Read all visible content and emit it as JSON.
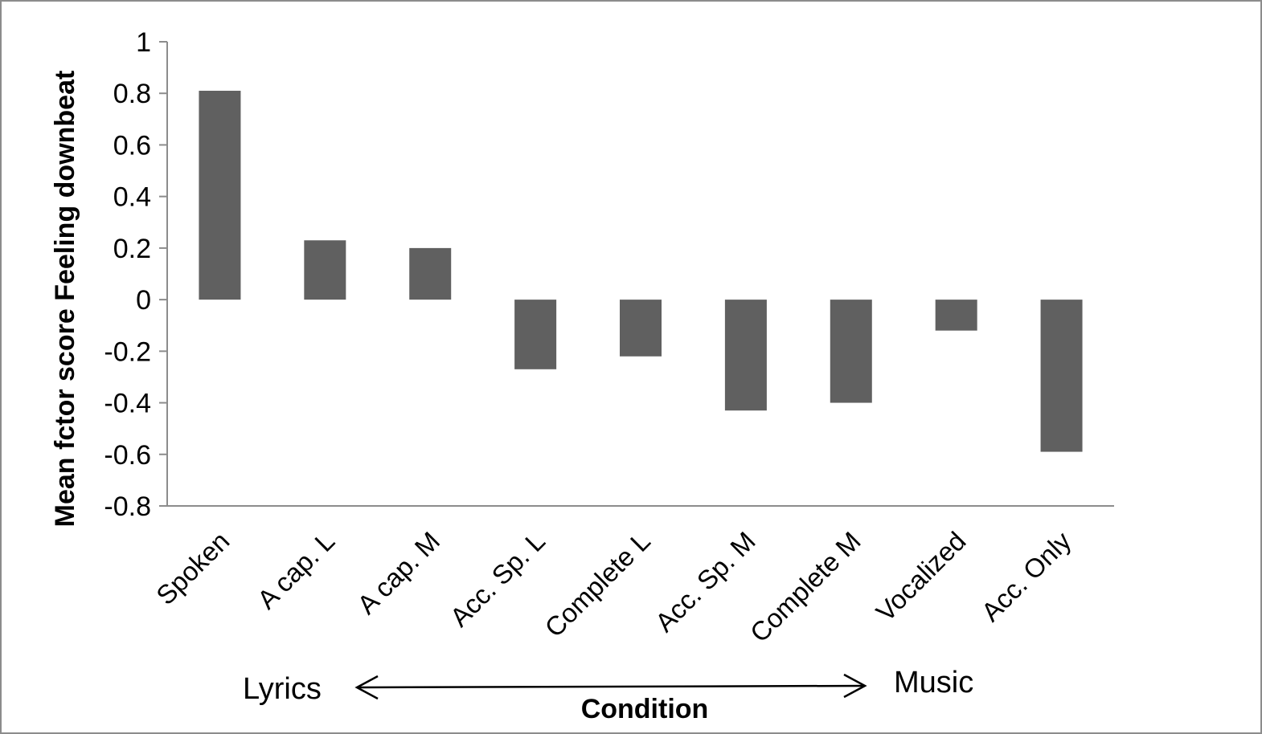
{
  "chart_data": {
    "type": "bar",
    "categories": [
      "Spoken",
      "A cap. L",
      "A cap. M",
      "Acc. Sp. L",
      "Complete L",
      "Acc. Sp. M",
      "Complete M",
      "Vocalized",
      "Acc. Only"
    ],
    "values": [
      0.81,
      0.23,
      0.2,
      -0.27,
      -0.22,
      -0.43,
      -0.4,
      -0.12,
      -0.59
    ],
    "yticks": [
      "1",
      "0.8",
      "0.6",
      "0.4",
      "0.2",
      "0",
      "-0.2",
      "-0.4",
      "-0.6",
      "-0.8"
    ],
    "ylim": [
      -0.8,
      1
    ],
    "xlabel": "Condition",
    "ylabel": "Mean fctor score Feeling downbeat",
    "left_label": "Lyrics",
    "right_label": "Music",
    "bar_color": "#606060",
    "axis_color": "#8c8c8c",
    "grid": false
  }
}
